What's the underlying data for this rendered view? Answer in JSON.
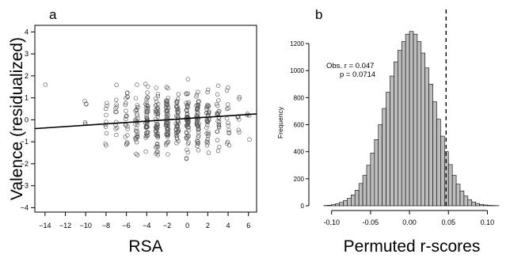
{
  "chart_data": [
    {
      "panel_label": "a",
      "type": "scatter",
      "xlabel": "RSA",
      "ylabel": "Valence (residualized)",
      "xlim": [
        -15,
        6.8
      ],
      "ylim": [
        -4.2,
        4.3
      ],
      "x_ticks": [
        -14,
        -12,
        -10,
        -8,
        -6,
        -4,
        -2,
        0,
        2,
        4,
        6
      ],
      "y_ticks": [
        -4,
        -3,
        -2,
        -1,
        0,
        1,
        2,
        3,
        4
      ],
      "x_tick_labels": [
        "−14",
        "−12",
        "−10",
        "−8",
        "−6",
        "−4",
        "−2",
        "0",
        "2",
        "4",
        "6"
      ],
      "y_tick_labels": [
        "−4",
        "−3",
        "−2",
        "−1",
        "0",
        "1",
        "2",
        "3",
        "4"
      ],
      "x_columns": [
        -14,
        -10,
        -8,
        -7,
        -6,
        -5,
        -4,
        -3,
        -2,
        -1,
        0,
        1,
        2,
        3,
        4,
        5,
        6
      ],
      "regression_line": {
        "x": [
          -15,
          6.8
        ],
        "y": [
          -0.4,
          0.27
        ]
      },
      "grid": false,
      "marker": "open circle"
    },
    {
      "panel_label": "b",
      "type": "bar",
      "subtype": "histogram",
      "xlabel": "Permuted r-scores",
      "ylabel": "Frequency",
      "xlim": [
        -0.117,
        0.125
      ],
      "ylim": [
        0,
        1300
      ],
      "x_ticks": [
        -0.1,
        -0.05,
        0.0,
        0.05,
        0.1
      ],
      "x_tick_labels": [
        "-0.10",
        "-0.05",
        "0.00",
        "0.05",
        "0.10"
      ],
      "y_ticks": [
        0,
        200,
        400,
        600,
        800,
        1000,
        1200
      ],
      "y_tick_labels": [
        "0",
        "200",
        "400",
        "600",
        "800",
        "1000",
        "1200"
      ],
      "bin_start": -0.11,
      "bin_width": 0.005,
      "counts": [
        2,
        4,
        8,
        15,
        25,
        38,
        55,
        80,
        115,
        165,
        225,
        300,
        390,
        490,
        600,
        720,
        840,
        960,
        1065,
        1150,
        1215,
        1270,
        1290,
        1270,
        1215,
        1130,
        1020,
        900,
        770,
        640,
        515,
        400,
        305,
        225,
        160,
        110,
        72,
        45,
        28,
        17,
        10,
        6,
        3,
        2,
        1
      ],
      "observed_line_x": 0.047,
      "annotation_line1": "Obs. r = 0.047",
      "annotation_line2": "p = 0.0714",
      "grid": false,
      "colors": {
        "bar_fill": "#bdbdbd",
        "bar_edge": "#000000"
      }
    }
  ]
}
